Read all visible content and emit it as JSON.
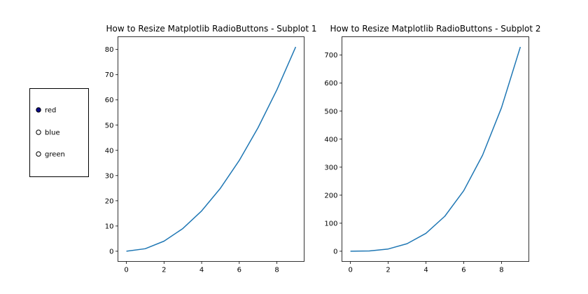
{
  "radio": {
    "options": [
      {
        "label": "red",
        "selected": true
      },
      {
        "label": "blue",
        "selected": false
      },
      {
        "label": "green",
        "selected": false
      }
    ],
    "active_color": "#0a0a8a"
  },
  "chart_data": [
    {
      "type": "line",
      "title": "How to Resize Matplotlib RadioButtons - Subplot 1",
      "xlabel": "",
      "ylabel": "",
      "x": [
        0,
        1,
        2,
        3,
        4,
        5,
        6,
        7,
        8,
        9
      ],
      "series": [
        {
          "values": [
            0,
            1,
            4,
            9,
            16,
            25,
            36,
            49,
            64,
            81
          ],
          "color": "#1f77b4"
        }
      ],
      "xlim": [
        -0.45,
        9.45
      ],
      "ylim": [
        -4.05,
        85.05
      ],
      "xticks": [
        0,
        2,
        4,
        6,
        8
      ],
      "yticks": [
        0,
        10,
        20,
        30,
        40,
        50,
        60,
        70,
        80
      ],
      "grid": false
    },
    {
      "type": "line",
      "title": "How to Resize Matplotlib RadioButtons - Subplot 2",
      "xlabel": "",
      "ylabel": "",
      "x": [
        0,
        1,
        2,
        3,
        4,
        5,
        6,
        7,
        8,
        9
      ],
      "series": [
        {
          "values": [
            0,
            1,
            8,
            27,
            64,
            125,
            216,
            343,
            512,
            729
          ],
          "color": "#1f77b4"
        }
      ],
      "xlim": [
        -0.45,
        9.45
      ],
      "ylim": [
        -36.45,
        765.45
      ],
      "xticks": [
        0,
        2,
        4,
        6,
        8
      ],
      "yticks": [
        0,
        100,
        200,
        300,
        400,
        500,
        600,
        700
      ],
      "grid": false
    }
  ]
}
